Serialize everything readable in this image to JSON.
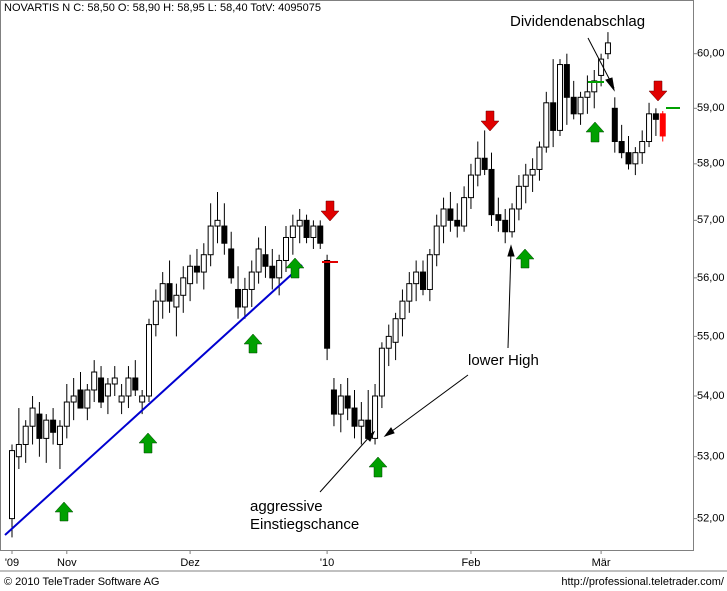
{
  "chart_data": {
    "type": "candlestick",
    "header": "NOVARTIS N C: 58,50 O: 58,90 H: 58,95 L: 58,40 TotV: 4095075",
    "log_scale": true,
    "ylim": [
      51.5,
      61.0
    ],
    "yticks": [
      {
        "value": 52,
        "label": "52,00"
      },
      {
        "value": 53,
        "label": "53,00"
      },
      {
        "value": 54,
        "label": "54,00"
      },
      {
        "value": 55,
        "label": "55,00"
      },
      {
        "value": 56,
        "label": "56,00"
      },
      {
        "value": 57,
        "label": "57,00"
      },
      {
        "value": 58,
        "label": "58,00"
      },
      {
        "value": 59,
        "label": "59,00"
      },
      {
        "value": 60,
        "label": "60,00"
      }
    ],
    "xticks": [
      {
        "value": 0,
        "label": "'09"
      },
      {
        "value": 8,
        "label": "Nov"
      },
      {
        "value": 26,
        "label": "Dez"
      },
      {
        "value": 46,
        "label": "'10"
      },
      {
        "value": 67,
        "label": "Feb"
      },
      {
        "value": 86,
        "label": "Mär"
      }
    ],
    "up_color": "#ffffff",
    "down_color": "#000000",
    "last_color": "#ff0000",
    "open": [
      52.0,
      53.0,
      53.2,
      53.5,
      53.7,
      53.3,
      53.6,
      53.2,
      53.5,
      53.9,
      54.1,
      53.8,
      54.1,
      54.3,
      54.0,
      54.2,
      53.9,
      54.0,
      54.3,
      53.9,
      54.0,
      55.2,
      55.6,
      55.9,
      55.5,
      55.7,
      55.9,
      56.2,
      56.1,
      56.4,
      56.9,
      56.9,
      56.5,
      55.8,
      55.5,
      55.8,
      56.1,
      56.4,
      56.2,
      56.0,
      56.3,
      56.7,
      56.9,
      57.0,
      56.7,
      56.9,
      56.3,
      54.1,
      53.7,
      54.0,
      53.8,
      53.5,
      53.6,
      53.3,
      54.0,
      54.8,
      54.9,
      55.3,
      55.6,
      55.9,
      56.1,
      55.8,
      56.4,
      56.9,
      57.2,
      57.0,
      56.9,
      57.4,
      57.8,
      58.1,
      57.9,
      57.1,
      57.0,
      56.8,
      57.2,
      57.6,
      57.8,
      57.9,
      58.3,
      59.1,
      58.6,
      59.8,
      59.2,
      58.9,
      59.2,
      59.3,
      59.6,
      60.0,
      59.0,
      58.4,
      58.2,
      58.0,
      58.2,
      58.4,
      58.9,
      58.9
    ],
    "high": [
      53.2,
      53.8,
      53.6,
      54.0,
      53.9,
      53.7,
      53.8,
      53.6,
      54.2,
      54.3,
      54.4,
      54.2,
      54.6,
      54.5,
      54.3,
      54.5,
      54.2,
      54.5,
      54.6,
      54.1,
      55.3,
      55.8,
      56.1,
      56.3,
      55.9,
      56.2,
      56.4,
      56.5,
      56.6,
      57.3,
      57.5,
      57.3,
      56.8,
      56.2,
      56.0,
      56.3,
      56.7,
      56.9,
      56.5,
      56.4,
      56.9,
      57.1,
      57.2,
      57.1,
      57.0,
      57.0,
      56.4,
      54.3,
      54.2,
      54.3,
      54.1,
      53.9,
      54.1,
      54.2,
      54.9,
      55.2,
      55.4,
      55.8,
      56.1,
      56.3,
      56.3,
      56.5,
      57.1,
      57.4,
      57.5,
      57.3,
      57.6,
      58.0,
      58.4,
      58.6,
      58.2,
      57.4,
      57.2,
      57.3,
      57.8,
      58.0,
      58.1,
      58.4,
      59.3,
      59.9,
      59.9,
      60.0,
      59.5,
      59.3,
      59.6,
      59.7,
      60.0,
      60.4,
      59.2,
      58.7,
      58.5,
      58.3,
      58.6,
      59.1,
      59.0,
      58.95
    ],
    "low": [
      51.7,
      52.8,
      52.9,
      53.2,
      53.0,
      52.9,
      53.2,
      52.8,
      53.3,
      53.6,
      53.8,
      53.6,
      53.9,
      53.8,
      53.7,
      54.0,
      53.7,
      53.8,
      54.0,
      53.7,
      53.9,
      55.0,
      55.3,
      55.4,
      55.0,
      55.4,
      55.6,
      55.9,
      55.8,
      56.2,
      56.6,
      56.4,
      55.9,
      55.3,
      55.3,
      55.5,
      55.9,
      56.0,
      55.8,
      55.7,
      56.1,
      56.4,
      56.6,
      56.6,
      56.5,
      56.5,
      54.6,
      53.5,
      53.4,
      53.6,
      53.3,
      53.2,
      53.3,
      53.2,
      53.8,
      54.5,
      54.6,
      55.0,
      55.4,
      55.6,
      55.7,
      55.6,
      56.2,
      56.6,
      56.8,
      56.7,
      56.8,
      57.2,
      57.6,
      57.8,
      56.9,
      56.8,
      56.6,
      56.7,
      57.0,
      57.3,
      57.5,
      57.7,
      58.2,
      58.3,
      58.5,
      58.7,
      58.8,
      58.7,
      58.9,
      59.0,
      59.4,
      59.9,
      58.2,
      58.1,
      57.9,
      57.8,
      58.0,
      58.3,
      58.5,
      58.4
    ],
    "close": [
      53.1,
      53.2,
      53.5,
      53.8,
      53.3,
      53.6,
      53.4,
      53.5,
      53.9,
      54.0,
      53.8,
      54.1,
      54.4,
      53.9,
      54.2,
      54.3,
      54.0,
      54.3,
      54.1,
      54.0,
      55.2,
      55.6,
      55.9,
      55.6,
      55.7,
      56.0,
      56.2,
      56.1,
      56.4,
      56.9,
      57.0,
      56.6,
      56.0,
      55.5,
      55.8,
      56.1,
      56.5,
      56.2,
      56.0,
      56.3,
      56.7,
      56.9,
      57.0,
      56.7,
      56.9,
      56.6,
      54.8,
      53.7,
      54.0,
      53.8,
      53.5,
      53.6,
      53.3,
      54.0,
      54.8,
      55.0,
      55.3,
      55.6,
      55.9,
      56.1,
      55.8,
      56.4,
      56.9,
      57.2,
      57.0,
      56.9,
      57.4,
      57.8,
      58.1,
      57.9,
      57.1,
      57.0,
      56.8,
      57.2,
      57.6,
      57.8,
      57.9,
      58.3,
      59.1,
      58.6,
      59.8,
      59.2,
      58.9,
      59.2,
      59.3,
      59.5,
      59.9,
      60.2,
      58.4,
      58.2,
      58.0,
      58.2,
      58.4,
      58.9,
      58.8,
      58.5
    ],
    "annotations": [
      "Dividendenabschlag",
      "lower High",
      "aggressive",
      "Einstiegschance"
    ],
    "footer_left": "© 2010 TeleTrader Software AG",
    "footer_right": "http://professional.teletrader.com/"
  }
}
